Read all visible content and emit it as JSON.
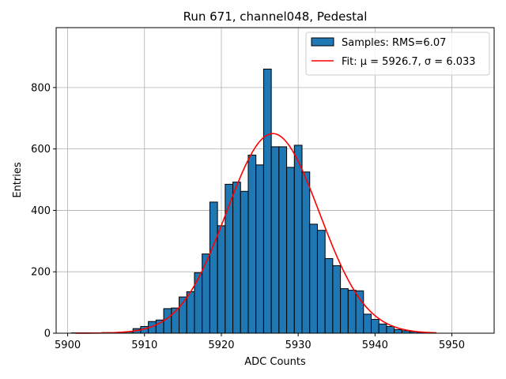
{
  "chart_data": {
    "type": "bar",
    "title": "Run 671, channel048, Pedestal",
    "xlabel": "ADC Counts",
    "ylabel": "Entries",
    "xlim": [
      5898.5,
      5955.5
    ],
    "ylim": [
      0,
      995
    ],
    "xticks": [
      5900,
      5910,
      5920,
      5930,
      5940,
      5950
    ],
    "yticks": [
      0,
      200,
      400,
      600,
      800
    ],
    "grid": true,
    "legend_position": "top-right",
    "colors": {
      "bar": "#1f77b4",
      "fit": "#ff0000",
      "edge": "#000000"
    },
    "bin_width": 1,
    "bins": [
      {
        "x": 5901,
        "y": 1
      },
      {
        "x": 5902,
        "y": 1
      },
      {
        "x": 5903,
        "y": 1
      },
      {
        "x": 5904,
        "y": 1
      },
      {
        "x": 5905,
        "y": 2
      },
      {
        "x": 5906,
        "y": 2
      },
      {
        "x": 5907,
        "y": 3
      },
      {
        "x": 5908,
        "y": 5
      },
      {
        "x": 5909,
        "y": 15
      },
      {
        "x": 5910,
        "y": 22
      },
      {
        "x": 5911,
        "y": 38
      },
      {
        "x": 5912,
        "y": 43
      },
      {
        "x": 5913,
        "y": 80
      },
      {
        "x": 5914,
        "y": 82
      },
      {
        "x": 5915,
        "y": 118
      },
      {
        "x": 5916,
        "y": 135
      },
      {
        "x": 5917,
        "y": 197
      },
      {
        "x": 5918,
        "y": 258
      },
      {
        "x": 5919,
        "y": 427
      },
      {
        "x": 5920,
        "y": 350
      },
      {
        "x": 5921,
        "y": 485
      },
      {
        "x": 5922,
        "y": 492
      },
      {
        "x": 5923,
        "y": 462
      },
      {
        "x": 5924,
        "y": 580
      },
      {
        "x": 5925,
        "y": 548
      },
      {
        "x": 5926,
        "y": 860
      },
      {
        "x": 5927,
        "y": 607
      },
      {
        "x": 5928,
        "y": 607
      },
      {
        "x": 5929,
        "y": 540
      },
      {
        "x": 5930,
        "y": 612
      },
      {
        "x": 5931,
        "y": 525
      },
      {
        "x": 5932,
        "y": 355
      },
      {
        "x": 5933,
        "y": 335
      },
      {
        "x": 5934,
        "y": 243
      },
      {
        "x": 5935,
        "y": 220
      },
      {
        "x": 5936,
        "y": 145
      },
      {
        "x": 5937,
        "y": 140
      },
      {
        "x": 5938,
        "y": 138
      },
      {
        "x": 5939,
        "y": 62
      },
      {
        "x": 5940,
        "y": 45
      },
      {
        "x": 5941,
        "y": 30
      },
      {
        "x": 5942,
        "y": 22
      },
      {
        "x": 5943,
        "y": 12
      },
      {
        "x": 5944,
        "y": 8
      },
      {
        "x": 5945,
        "y": 5
      },
      {
        "x": 5946,
        "y": 3
      },
      {
        "x": 5947,
        "y": 2
      }
    ],
    "fit": {
      "mu": 5926.7,
      "sigma": 6.033,
      "amplitude": 650,
      "x_range": [
        5901,
        5948
      ]
    },
    "legend": [
      {
        "name": "Samples: RMS=6.07",
        "kind": "bar"
      },
      {
        "name": "Fit: μ = 5926.7, σ = 6.033",
        "kind": "line"
      }
    ]
  }
}
